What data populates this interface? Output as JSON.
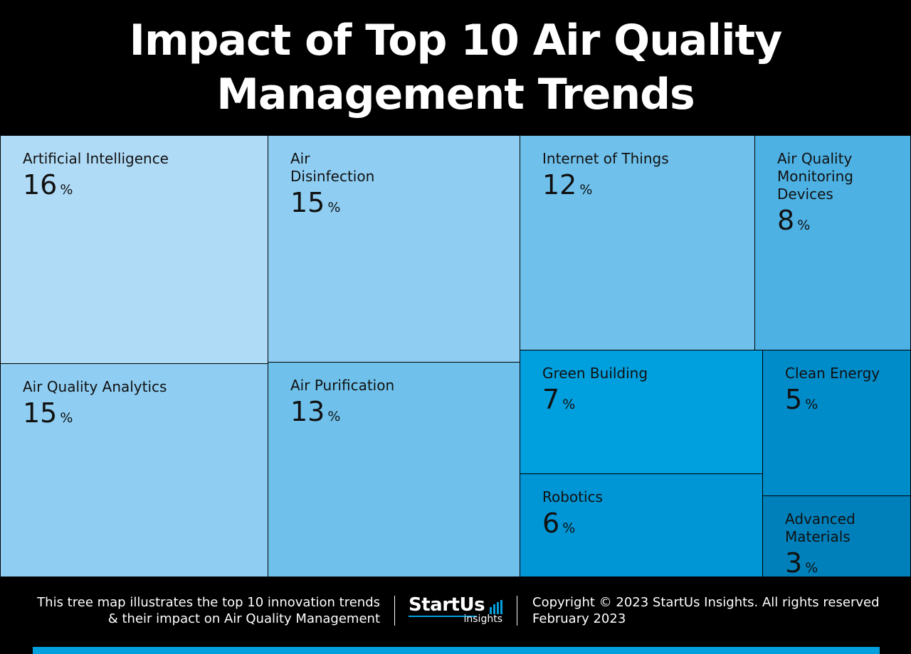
{
  "title_lines": [
    "Impact of Top 10 Air Quality",
    "Management Trends"
  ],
  "chart_data": {
    "type": "treemap",
    "unit": "%",
    "items": [
      {
        "label": "Artificial Intelligence",
        "value": 16,
        "color": "#b0dbf6"
      },
      {
        "label": "Air Quality Analytics",
        "value": 15,
        "color": "#8fcef2"
      },
      {
        "label": "Air Disinfection",
        "value": 15,
        "color": "#8fcef2"
      },
      {
        "label": "Air Purification",
        "value": 13,
        "color": "#6fc1ec"
      },
      {
        "label": "Internet of Things",
        "value": 12,
        "color": "#6fc1ec"
      },
      {
        "label": "Air Quality Monitoring Devices",
        "value": 8,
        "color": "#4db1e4"
      },
      {
        "label": "Green Building",
        "value": 7,
        "color": "#009fdd"
      },
      {
        "label": "Robotics",
        "value": 6,
        "color": "#0095d4"
      },
      {
        "label": "Clean Energy",
        "value": 5,
        "color": "#008bc9"
      },
      {
        "label": "Advanced Materials",
        "value": 3,
        "color": "#0080bb"
      }
    ]
  },
  "footer": {
    "description_lines": [
      "This tree map illustrates the top 10 innovation trends",
      "& their impact on Air Quality Management"
    ],
    "logo_main": "StartUs",
    "logo_sub": "insights",
    "copyright": "Copyright © 2023 StartUs Insights. All rights reserved",
    "date": "February 2023"
  },
  "colors": {
    "background": "#000000",
    "accent": "#00a0df",
    "text": "#ffffff"
  }
}
